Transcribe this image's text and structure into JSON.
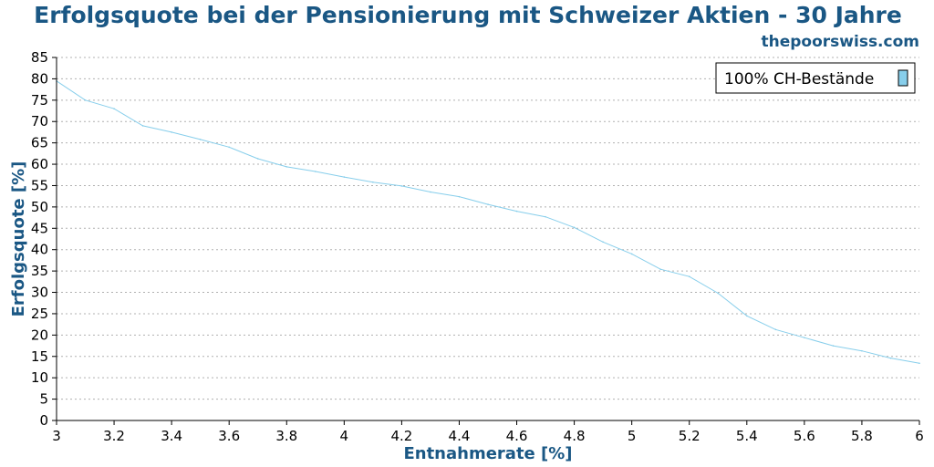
{
  "chart_data": {
    "type": "line",
    "title": "Erfolgsquote bei der Pensionierung mit Schweizer Aktien - 30 Jahre",
    "source": "thepoorswiss.com",
    "xlabel": "Entnahmerate [%]",
    "ylabel": "Erfolgsquote [%]",
    "xlim": [
      3,
      6
    ],
    "ylim": [
      0,
      85
    ],
    "x_ticks": [
      "3",
      "3.2",
      "3.4",
      "3.6",
      "3.8",
      "4",
      "4.2",
      "4.4",
      "4.6",
      "4.8",
      "5",
      "5.2",
      "5.4",
      "5.6",
      "5.8",
      "6"
    ],
    "y_ticks": [
      "0",
      "5",
      "10",
      "15",
      "20",
      "25",
      "30",
      "35",
      "40",
      "45",
      "50",
      "55",
      "60",
      "65",
      "70",
      "75",
      "80",
      "85"
    ],
    "grid": true,
    "legend_position": "top-right",
    "x": [
      3.0,
      3.1,
      3.2,
      3.3,
      3.4,
      3.5,
      3.6,
      3.7,
      3.8,
      3.9,
      4.0,
      4.1,
      4.2,
      4.3,
      4.4,
      4.5,
      4.6,
      4.7,
      4.8,
      4.9,
      5.0,
      5.1,
      5.2,
      5.3,
      5.4,
      5.5,
      5.6,
      5.7,
      5.8,
      5.9,
      6.0
    ],
    "series": [
      {
        "name": "100% CH-Bestände",
        "color": "#87ceeb",
        "values": [
          79.5,
          75,
          73,
          69,
          67.5,
          65.8,
          64,
          61.3,
          59.4,
          58.3,
          57,
          55.8,
          54.9,
          53.5,
          52.4,
          50.6,
          49,
          47.7,
          45.2,
          41.8,
          39,
          35.4,
          33.7,
          29.8,
          24.5,
          21.3,
          19.4,
          17.5,
          16.3,
          14.6,
          13.4
        ]
      }
    ]
  }
}
